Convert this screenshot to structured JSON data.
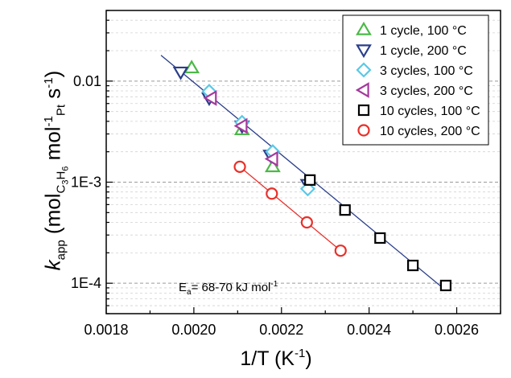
{
  "chart_data": {
    "type": "scatter",
    "xlabel": "1/T (K",
    "xlabel_sup": "-1",
    "xlabel_end": ")",
    "ylabel": {
      "k": "k",
      "k_sub": "app",
      "open": " (mol",
      "sub_c": "C",
      "sub_c3": "3",
      "sub_h": "H",
      "sub_h6": "6",
      "mid": " mol",
      "pt_sup": "-1",
      "pt_sub": "Pt",
      "s": " s",
      "s_sup": "-1",
      "close": ")"
    },
    "xlim": [
      0.0018,
      0.0027
    ],
    "ylim": [
      5e-05,
      0.05
    ],
    "y_scale": "log",
    "grid": "horizontal dashed, major and minor",
    "legend_position": "top-right",
    "x_ticks": [
      "0.0018",
      "0.0020",
      "0.0022",
      "0.0024",
      "0.0026"
    ],
    "x_tick_values": [
      0.0018,
      0.002,
      0.0022,
      0.0024,
      0.0026
    ],
    "y_ticks": [
      "1E-4",
      "1E-3",
      "0.01"
    ],
    "y_tick_values": [
      0.0001,
      0.001,
      0.01
    ],
    "annotation": {
      "text": "E",
      "sub": "a",
      "rest": "= 68-70 kJ mol",
      "sup": "-1"
    },
    "series": [
      {
        "name": "1 cycle, 100 °C",
        "marker": "triangle-up",
        "color": "#4cb848",
        "x": [
          0.001995,
          0.00211,
          0.00218
        ],
        "y": [
          0.0135,
          0.0033,
          0.00142
        ]
      },
      {
        "name": "1 cycle, 200 °C",
        "marker": "triangle-down",
        "color": "#2a3e8a",
        "x": [
          0.00197,
          0.002035,
          0.00211,
          0.002175,
          0.00226
        ],
        "y": [
          0.0123,
          0.0068,
          0.0036,
          0.00185,
          0.00095
        ]
      },
      {
        "name": "3 cycles, 100 °C",
        "marker": "diamond",
        "color": "#5bc8e6",
        "x": [
          0.002035,
          0.00211,
          0.00218,
          0.00226
        ],
        "y": [
          0.0079,
          0.0039,
          0.002,
          0.00086
        ]
      },
      {
        "name": "3 cycles, 200 °C",
        "marker": "triangle-left",
        "color": "#a43a9c",
        "x": [
          0.00204,
          0.00211,
          0.00218
        ],
        "y": [
          0.0068,
          0.0036,
          0.0017
        ]
      },
      {
        "name": "10 cycles, 100 °C",
        "marker": "square",
        "color": "#000000",
        "x": [
          0.002265,
          0.002345,
          0.002425,
          0.0025,
          0.002575
        ],
        "y": [
          0.00105,
          0.00053,
          0.00028,
          0.00015,
          9.5e-05
        ]
      },
      {
        "name": "10 cycles, 200 °C",
        "marker": "circle",
        "color": "#e8302a",
        "x": [
          0.002105,
          0.002178,
          0.002258,
          0.002335
        ],
        "y": [
          0.00142,
          0.00077,
          0.0004,
          0.00021
        ]
      }
    ],
    "fit_lines": [
      {
        "color": "#2a3e8a",
        "x": [
          0.001925,
          0.002575
        ],
        "y": [
          0.018,
          8.5e-05
        ]
      },
      {
        "color": "#e8302a",
        "x": [
          0.002105,
          0.002335
        ],
        "y": [
          0.00142,
          0.00021
        ]
      }
    ]
  }
}
